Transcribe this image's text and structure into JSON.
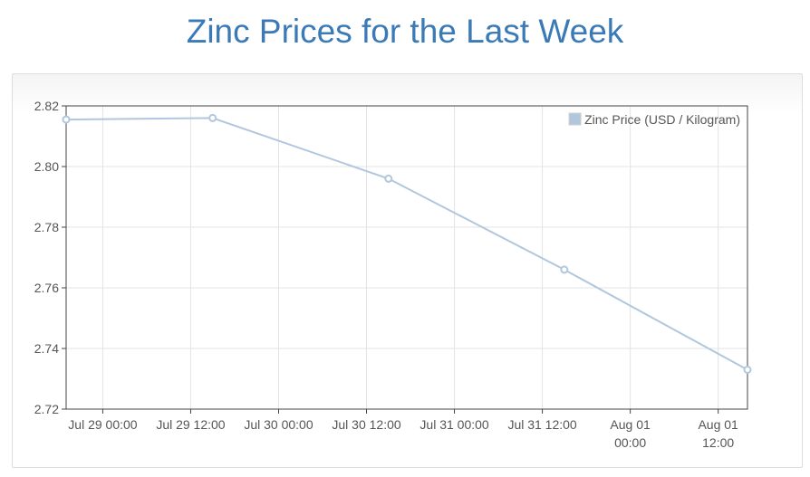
{
  "chart_data": {
    "type": "line",
    "title": "Zinc Prices for the Last Week",
    "xlabel": "",
    "ylabel": "",
    "ylim": [
      2.72,
      2.82
    ],
    "xlim": [
      "2016-07-28T19:00",
      "2016-08-01T16:00"
    ],
    "y_ticks": [
      "2.72",
      "2.74",
      "2.76",
      "2.78",
      "2.80",
      "2.82"
    ],
    "x_ticks": [
      {
        "t": "2016-07-29T00:00",
        "lines": [
          "Jul 29 00:00"
        ]
      },
      {
        "t": "2016-07-29T12:00",
        "lines": [
          "Jul 29 12:00"
        ]
      },
      {
        "t": "2016-07-30T00:00",
        "lines": [
          "Jul 30 00:00"
        ]
      },
      {
        "t": "2016-07-30T12:00",
        "lines": [
          "Jul 30 12:00"
        ]
      },
      {
        "t": "2016-07-31T00:00",
        "lines": [
          "Jul 31 00:00"
        ]
      },
      {
        "t": "2016-07-31T12:00",
        "lines": [
          "Jul 31 12:00"
        ]
      },
      {
        "t": "2016-08-01T00:00",
        "lines": [
          "Aug 01",
          "00:00"
        ]
      },
      {
        "t": "2016-08-01T12:00",
        "lines": [
          "Aug 01",
          "12:00"
        ]
      }
    ],
    "grid": true,
    "legend_position": "top-right",
    "series": [
      {
        "name": "Zinc Price (USD / Kilogram)",
        "color": "#b0c7dd",
        "points": [
          {
            "x": "2016-07-28T19:00",
            "y": 2.8155
          },
          {
            "x": "2016-07-29T15:00",
            "y": 2.816
          },
          {
            "x": "2016-07-30T15:00",
            "y": 2.796
          },
          {
            "x": "2016-07-31T15:00",
            "y": 2.766
          },
          {
            "x": "2016-08-01T16:00",
            "y": 2.733
          }
        ]
      }
    ]
  }
}
